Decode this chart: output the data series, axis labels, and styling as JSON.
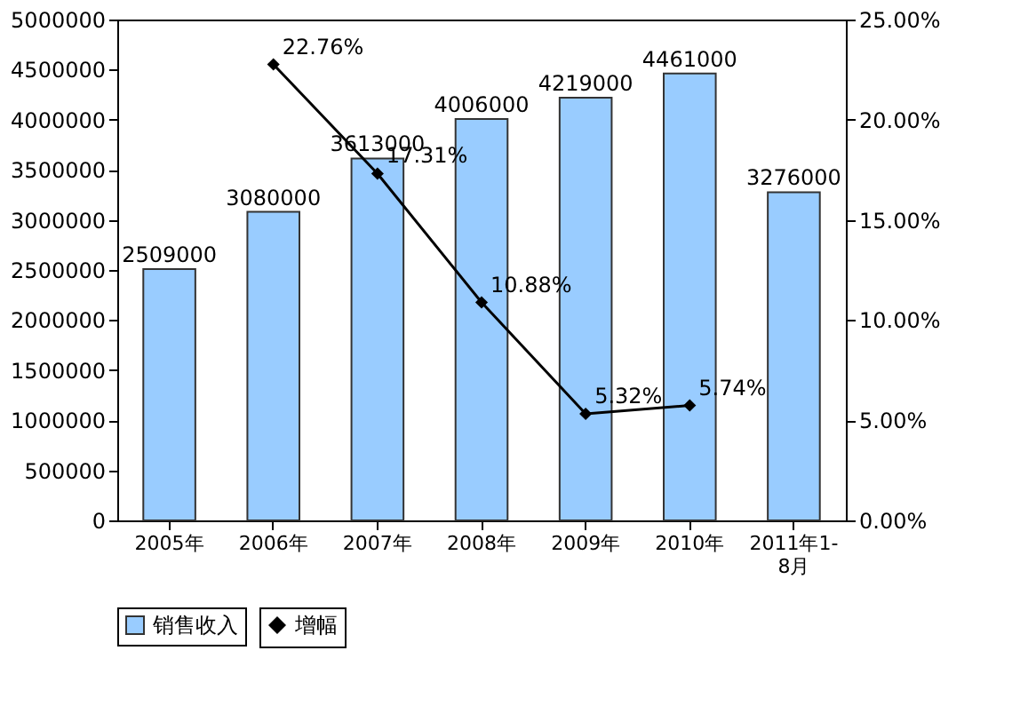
{
  "chart_data": {
    "type": "bar",
    "categories": [
      "2005年",
      "2006年",
      "2007年",
      "2008年",
      "2009年",
      "2010年",
      "2011年1-8月"
    ],
    "series": [
      {
        "name": "销售收入",
        "color": "#99ccff",
        "values": [
          2509000,
          3080000,
          3613000,
          4006000,
          4219000,
          4461000,
          3276000
        ]
      },
      {
        "name": "增幅",
        "type": "line",
        "axis": "y2",
        "color": "#000000",
        "marker": "diamond",
        "line_style": "solid",
        "values": [
          null,
          22.76,
          17.31,
          10.88,
          5.32,
          5.74,
          null
        ],
        "value_labels": [
          null,
          "22.76%",
          "17.31%",
          "10.88%",
          "5.32%",
          "5.74%",
          null
        ]
      }
    ],
    "ylim": [
      0,
      5000000
    ],
    "yticks": [
      0,
      500000,
      1000000,
      1500000,
      2000000,
      2500000,
      3000000,
      3500000,
      4000000,
      4500000,
      5000000
    ],
    "y2lim": [
      0,
      25
    ],
    "y2ticks": [
      {
        "value": 0,
        "label": "0.00%"
      },
      {
        "value": 5,
        "label": "5.00%"
      },
      {
        "value": 10,
        "label": "10.00%"
      },
      {
        "value": 15,
        "label": "15.00%"
      },
      {
        "value": 20,
        "label": "20.00%"
      },
      {
        "value": 25,
        "label": "25.00%"
      }
    ],
    "data_labels": true,
    "grid": false,
    "legend": "bottom"
  }
}
